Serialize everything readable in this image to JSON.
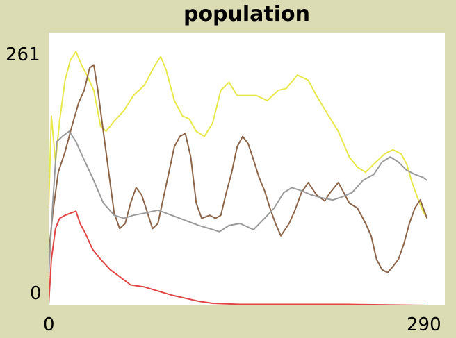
{
  "chart_data": {
    "type": "line",
    "title": "population",
    "xlabel": "",
    "ylabel": "",
    "xlim": [
      0,
      290
    ],
    "ylim": [
      0,
      261
    ],
    "x_tick_labels": [
      "0",
      "290"
    ],
    "y_tick_labels": [
      "0",
      "261"
    ],
    "grid": false,
    "legend": "none",
    "series": [
      {
        "color": "#e8e84a",
        "points": [
          [
            0,
            95
          ],
          [
            2,
            185
          ],
          [
            5,
            140
          ],
          [
            8,
            180
          ],
          [
            12,
            220
          ],
          [
            16,
            240
          ],
          [
            20,
            248
          ],
          [
            24,
            235
          ],
          [
            28,
            225
          ],
          [
            33,
            210
          ],
          [
            38,
            175
          ],
          [
            42,
            170
          ],
          [
            48,
            180
          ],
          [
            55,
            190
          ],
          [
            62,
            205
          ],
          [
            70,
            215
          ],
          [
            78,
            235
          ],
          [
            82,
            243
          ],
          [
            86,
            230
          ],
          [
            92,
            200
          ],
          [
            98,
            185
          ],
          [
            103,
            182
          ],
          [
            108,
            170
          ],
          [
            114,
            165
          ],
          [
            120,
            178
          ],
          [
            126,
            210
          ],
          [
            132,
            218
          ],
          [
            138,
            205
          ],
          [
            146,
            205
          ],
          [
            152,
            205
          ],
          [
            160,
            200
          ],
          [
            168,
            210
          ],
          [
            174,
            212
          ],
          [
            182,
            225
          ],
          [
            190,
            220
          ],
          [
            196,
            205
          ],
          [
            205,
            185
          ],
          [
            212,
            170
          ],
          [
            220,
            145
          ],
          [
            226,
            135
          ],
          [
            232,
            130
          ],
          [
            238,
            138
          ],
          [
            246,
            148
          ],
          [
            252,
            152
          ],
          [
            258,
            148
          ],
          [
            262,
            138
          ],
          [
            266,
            120
          ],
          [
            270,
            105
          ],
          [
            274,
            92
          ],
          [
            277,
            85
          ]
        ]
      },
      {
        "color": "#8c6448",
        "points": [
          [
            0,
            50
          ],
          [
            3,
            90
          ],
          [
            7,
            130
          ],
          [
            12,
            150
          ],
          [
            17,
            175
          ],
          [
            22,
            198
          ],
          [
            26,
            210
          ],
          [
            30,
            232
          ],
          [
            33,
            235
          ],
          [
            36,
            210
          ],
          [
            40,
            170
          ],
          [
            45,
            120
          ],
          [
            48,
            90
          ],
          [
            52,
            75
          ],
          [
            56,
            80
          ],
          [
            60,
            100
          ],
          [
            64,
            115
          ],
          [
            68,
            108
          ],
          [
            72,
            92
          ],
          [
            76,
            75
          ],
          [
            80,
            80
          ],
          [
            84,
            105
          ],
          [
            88,
            130
          ],
          [
            92,
            155
          ],
          [
            96,
            165
          ],
          [
            100,
            168
          ],
          [
            104,
            145
          ],
          [
            108,
            100
          ],
          [
            112,
            85
          ],
          [
            118,
            88
          ],
          [
            122,
            85
          ],
          [
            126,
            88
          ],
          [
            130,
            110
          ],
          [
            134,
            130
          ],
          [
            138,
            155
          ],
          [
            142,
            165
          ],
          [
            146,
            158
          ],
          [
            150,
            142
          ],
          [
            154,
            125
          ],
          [
            158,
            112
          ],
          [
            162,
            95
          ],
          [
            166,
            80
          ],
          [
            170,
            68
          ],
          [
            176,
            80
          ],
          [
            180,
            92
          ],
          [
            185,
            110
          ],
          [
            190,
            120
          ],
          [
            196,
            108
          ],
          [
            202,
            102
          ],
          [
            206,
            110
          ],
          [
            212,
            120
          ],
          [
            216,
            110
          ],
          [
            220,
            100
          ],
          [
            226,
            95
          ],
          [
            232,
            80
          ],
          [
            236,
            68
          ],
          [
            240,
            45
          ],
          [
            244,
            35
          ],
          [
            248,
            32
          ],
          [
            252,
            38
          ],
          [
            256,
            45
          ],
          [
            260,
            60
          ],
          [
            264,
            80
          ],
          [
            268,
            95
          ],
          [
            272,
            103
          ],
          [
            277,
            85
          ]
        ]
      },
      {
        "color": "#9a9a9a",
        "points": [
          [
            0,
            30
          ],
          [
            3,
            100
          ],
          [
            6,
            160
          ],
          [
            10,
            165
          ],
          [
            15,
            170
          ],
          [
            20,
            160
          ],
          [
            25,
            145
          ],
          [
            32,
            125
          ],
          [
            40,
            100
          ],
          [
            48,
            88
          ],
          [
            55,
            85
          ],
          [
            62,
            88
          ],
          [
            70,
            90
          ],
          [
            80,
            93
          ],
          [
            90,
            88
          ],
          [
            100,
            83
          ],
          [
            110,
            78
          ],
          [
            118,
            75
          ],
          [
            125,
            72
          ],
          [
            132,
            78
          ],
          [
            140,
            80
          ],
          [
            150,
            74
          ],
          [
            158,
            85
          ],
          [
            165,
            95
          ],
          [
            172,
            110
          ],
          [
            178,
            115
          ],
          [
            185,
            112
          ],
          [
            192,
            108
          ],
          [
            200,
            105
          ],
          [
            208,
            103
          ],
          [
            215,
            106
          ],
          [
            222,
            110
          ],
          [
            230,
            122
          ],
          [
            238,
            128
          ],
          [
            244,
            140
          ],
          [
            250,
            145
          ],
          [
            256,
            140
          ],
          [
            262,
            132
          ],
          [
            268,
            128
          ],
          [
            274,
            125
          ],
          [
            277,
            122
          ]
        ]
      },
      {
        "color": "#e04646",
        "points": [
          [
            0,
            0
          ],
          [
            2,
            45
          ],
          [
            5,
            75
          ],
          [
            8,
            85
          ],
          [
            12,
            88
          ],
          [
            16,
            90
          ],
          [
            20,
            92
          ],
          [
            23,
            80
          ],
          [
            27,
            70
          ],
          [
            32,
            55
          ],
          [
            38,
            45
          ],
          [
            45,
            35
          ],
          [
            52,
            28
          ],
          [
            60,
            20
          ],
          [
            70,
            18
          ],
          [
            80,
            14
          ],
          [
            90,
            10
          ],
          [
            100,
            7
          ],
          [
            110,
            4
          ],
          [
            120,
            2
          ],
          [
            140,
            1
          ],
          [
            180,
            1
          ],
          [
            220,
            1
          ],
          [
            277,
            0
          ]
        ]
      }
    ]
  }
}
